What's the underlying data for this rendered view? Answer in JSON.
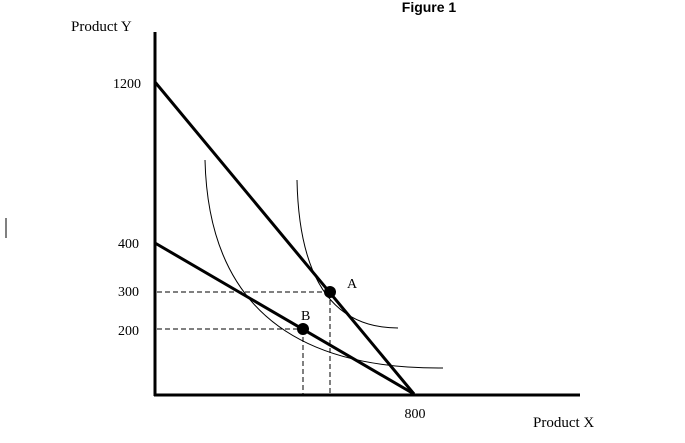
{
  "figure": {
    "title": "Figure 1"
  },
  "axes": {
    "y_label": "Product Y",
    "x_label": "Product X",
    "y_ticks": [
      "1200",
      "400",
      "300",
      "200"
    ],
    "x_ticks": [
      "800"
    ]
  },
  "points": {
    "a": {
      "label": "A",
      "x": 470,
      "y": 300
    },
    "b": {
      "label": "B",
      "x": 380,
      "y": 200
    }
  },
  "chart_data": {
    "type": "line",
    "series": [
      {
        "x": [
          0,
          800
        ],
        "y": [
          1200,
          0
        ]
      },
      {
        "x": [
          0,
          800
        ],
        "y": [
          400,
          0
        ]
      }
    ],
    "points": [
      {
        "label": "A",
        "x": 470,
        "y": 300
      },
      {
        "label": "B",
        "x": 380,
        "y": 200
      }
    ],
    "y_ticks": [
      1200,
      400,
      300,
      200
    ],
    "x_ticks": [
      800
    ]
  }
}
